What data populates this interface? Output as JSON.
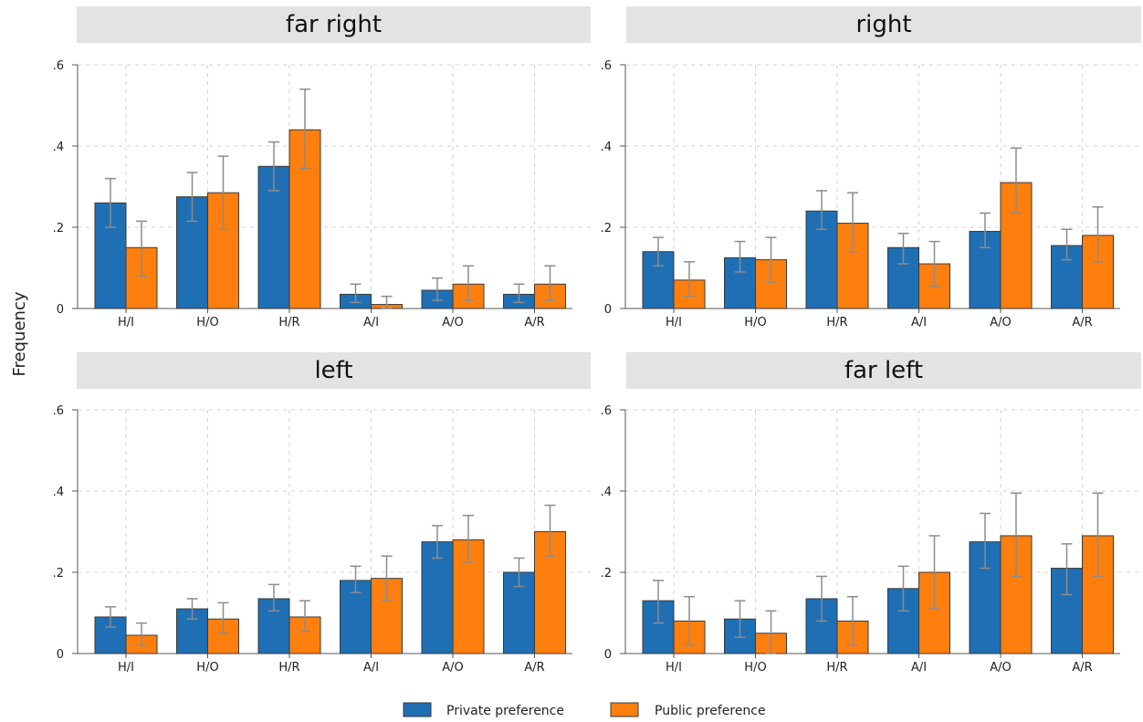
{
  "chart_data": {
    "type": "bar",
    "ylabel": "Frequency",
    "ylim": [
      0,
      0.6
    ],
    "yticks": [
      0,
      0.2,
      0.4,
      0.6
    ],
    "ytick_labels": [
      "0",
      ".2",
      ".4",
      ".6"
    ],
    "grid": true,
    "error_bars": true,
    "legend_position": "bottom-center",
    "categories": [
      "H/I",
      "H/O",
      "H/R",
      "A/I",
      "A/O",
      "A/R"
    ],
    "series_info": [
      {
        "name": "Private preference",
        "color": "#1f6fb4"
      },
      {
        "name": "Public preference",
        "color": "#ff7f0e"
      }
    ],
    "panels": [
      {
        "title": "far right",
        "series": [
          {
            "name": "Private preference",
            "values": [
              0.26,
              0.275,
              0.35,
              0.035,
              0.045,
              0.035
            ],
            "ci_low": [
              0.2,
              0.215,
              0.29,
              0.015,
              0.02,
              0.015
            ],
            "ci_high": [
              0.32,
              0.335,
              0.41,
              0.06,
              0.075,
              0.06
            ]
          },
          {
            "name": "Public preference",
            "values": [
              0.15,
              0.285,
              0.44,
              0.01,
              0.06,
              0.06
            ],
            "ci_low": [
              0.08,
              0.195,
              0.345,
              0.0,
              0.02,
              0.02
            ],
            "ci_high": [
              0.215,
              0.375,
              0.54,
              0.03,
              0.105,
              0.105
            ]
          }
        ]
      },
      {
        "title": "right",
        "series": [
          {
            "name": "Private preference",
            "values": [
              0.14,
              0.125,
              0.24,
              0.15,
              0.19,
              0.155
            ],
            "ci_low": [
              0.105,
              0.09,
              0.195,
              0.11,
              0.15,
              0.12
            ],
            "ci_high": [
              0.175,
              0.165,
              0.29,
              0.185,
              0.235,
              0.195
            ]
          },
          {
            "name": "Public preference",
            "values": [
              0.07,
              0.12,
              0.21,
              0.11,
              0.31,
              0.18
            ],
            "ci_low": [
              0.03,
              0.065,
              0.14,
              0.055,
              0.235,
              0.115
            ],
            "ci_high": [
              0.115,
              0.175,
              0.285,
              0.165,
              0.395,
              0.25
            ]
          }
        ]
      },
      {
        "title": "left",
        "series": [
          {
            "name": "Private preference",
            "values": [
              0.09,
              0.11,
              0.135,
              0.18,
              0.275,
              0.2
            ],
            "ci_low": [
              0.065,
              0.085,
              0.105,
              0.15,
              0.235,
              0.165
            ],
            "ci_high": [
              0.115,
              0.135,
              0.17,
              0.215,
              0.315,
              0.235
            ]
          },
          {
            "name": "Public preference",
            "values": [
              0.045,
              0.085,
              0.09,
              0.185,
              0.28,
              0.3
            ],
            "ci_low": [
              0.02,
              0.05,
              0.055,
              0.13,
              0.225,
              0.24
            ],
            "ci_high": [
              0.075,
              0.125,
              0.13,
              0.24,
              0.34,
              0.365
            ]
          }
        ]
      },
      {
        "title": "far left",
        "series": [
          {
            "name": "Private preference",
            "values": [
              0.13,
              0.085,
              0.135,
              0.16,
              0.275,
              0.21
            ],
            "ci_low": [
              0.075,
              0.04,
              0.08,
              0.105,
              0.21,
              0.145
            ],
            "ci_high": [
              0.18,
              0.13,
              0.19,
              0.215,
              0.345,
              0.27
            ]
          },
          {
            "name": "Public preference",
            "values": [
              0.08,
              0.05,
              0.08,
              0.2,
              0.29,
              0.29
            ],
            "ci_low": [
              0.02,
              0.0,
              0.02,
              0.11,
              0.19,
              0.19
            ],
            "ci_high": [
              0.14,
              0.105,
              0.14,
              0.29,
              0.395,
              0.395
            ]
          }
        ]
      }
    ]
  }
}
